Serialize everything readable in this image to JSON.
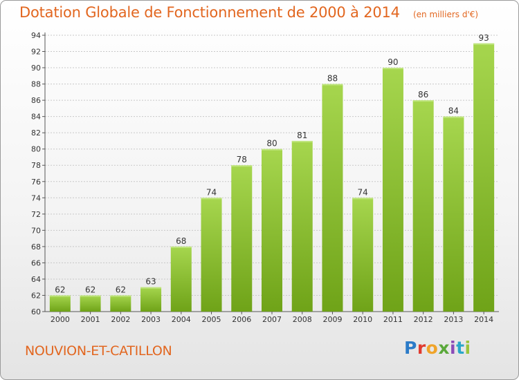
{
  "title": "Dotation Globale de Fonctionnement de 2000 à 2014",
  "subtitle": "(en milliers d'€)",
  "commune": "NOUVION-ET-CATILLON",
  "logo": "Proxiti",
  "colors": {
    "title": "#e2661f",
    "bar_light": "#a6d64e",
    "bar_dark": "#6fa318",
    "grid": "#c8c8c8"
  },
  "chart_data": {
    "type": "bar",
    "categories": [
      "2000",
      "2001",
      "2002",
      "2003",
      "2004",
      "2005",
      "2006",
      "2007",
      "2008",
      "2009",
      "2010",
      "2011",
      "2012",
      "2013",
      "2014"
    ],
    "values": [
      62,
      62,
      62,
      63,
      68,
      74,
      78,
      80,
      81,
      88,
      74,
      90,
      86,
      84,
      93
    ],
    "title": "Dotation Globale de Fonctionnement de 2000 à 2014",
    "subtitle": "(en milliers d'€)",
    "xlabel": "",
    "ylabel": "",
    "ylim": [
      60,
      94
    ],
    "yticks": [
      60,
      62,
      64,
      66,
      68,
      70,
      72,
      74,
      76,
      78,
      80,
      82,
      84,
      86,
      88,
      90,
      92,
      94
    ],
    "grid": true,
    "legend": "none",
    "data_labels": true
  }
}
